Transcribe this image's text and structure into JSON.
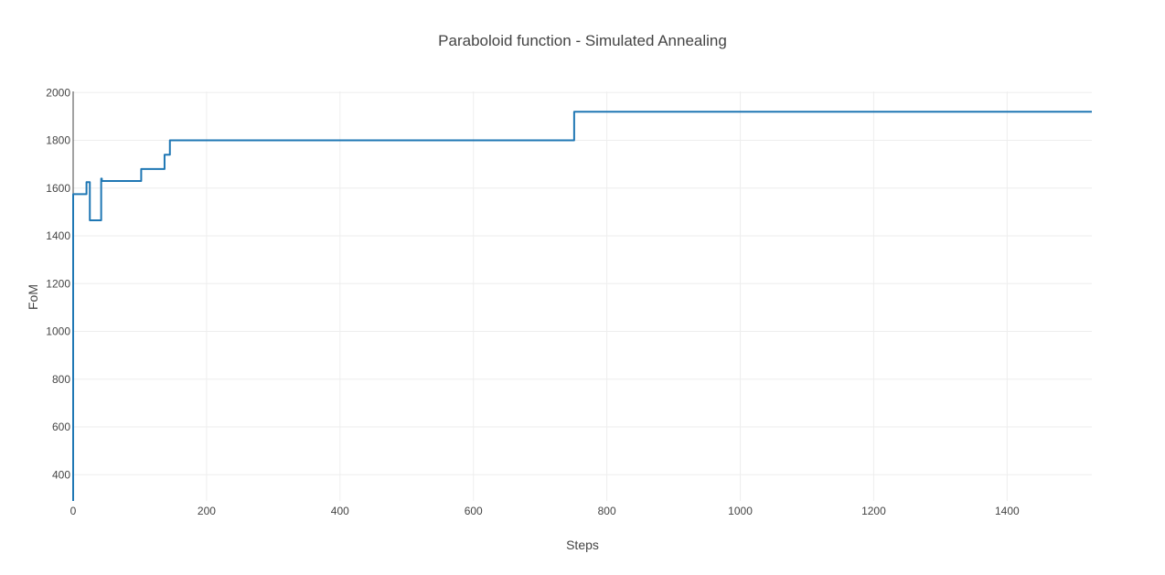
{
  "chart_data": {
    "type": "line",
    "title": "Paraboloid function  - Simulated Annealing",
    "xlabel": "Steps",
    "ylabel": "FoM",
    "xlim": [
      0,
      1527
    ],
    "ylim": [
      290,
      2005
    ],
    "xticks": [
      0,
      200,
      400,
      600,
      800,
      1000,
      1200,
      1400
    ],
    "yticks": [
      400,
      600,
      800,
      1000,
      1200,
      1400,
      1600,
      1800,
      2000
    ],
    "grid": true,
    "line_shape": "step",
    "series": [
      {
        "color": "#1f77b4",
        "points": [
          [
            0,
            290
          ],
          [
            0,
            1575
          ],
          [
            20,
            1575
          ],
          [
            20,
            1625
          ],
          [
            25,
            1625
          ],
          [
            25,
            1465
          ],
          [
            42,
            1465
          ],
          [
            42,
            1640
          ],
          [
            43,
            1640
          ],
          [
            43,
            1630
          ],
          [
            102,
            1630
          ],
          [
            102,
            1680
          ],
          [
            137,
            1680
          ],
          [
            137,
            1740
          ],
          [
            145,
            1740
          ],
          [
            145,
            1800
          ],
          [
            751,
            1800
          ],
          [
            751,
            1920
          ],
          [
            1527,
            1920
          ]
        ]
      }
    ]
  }
}
